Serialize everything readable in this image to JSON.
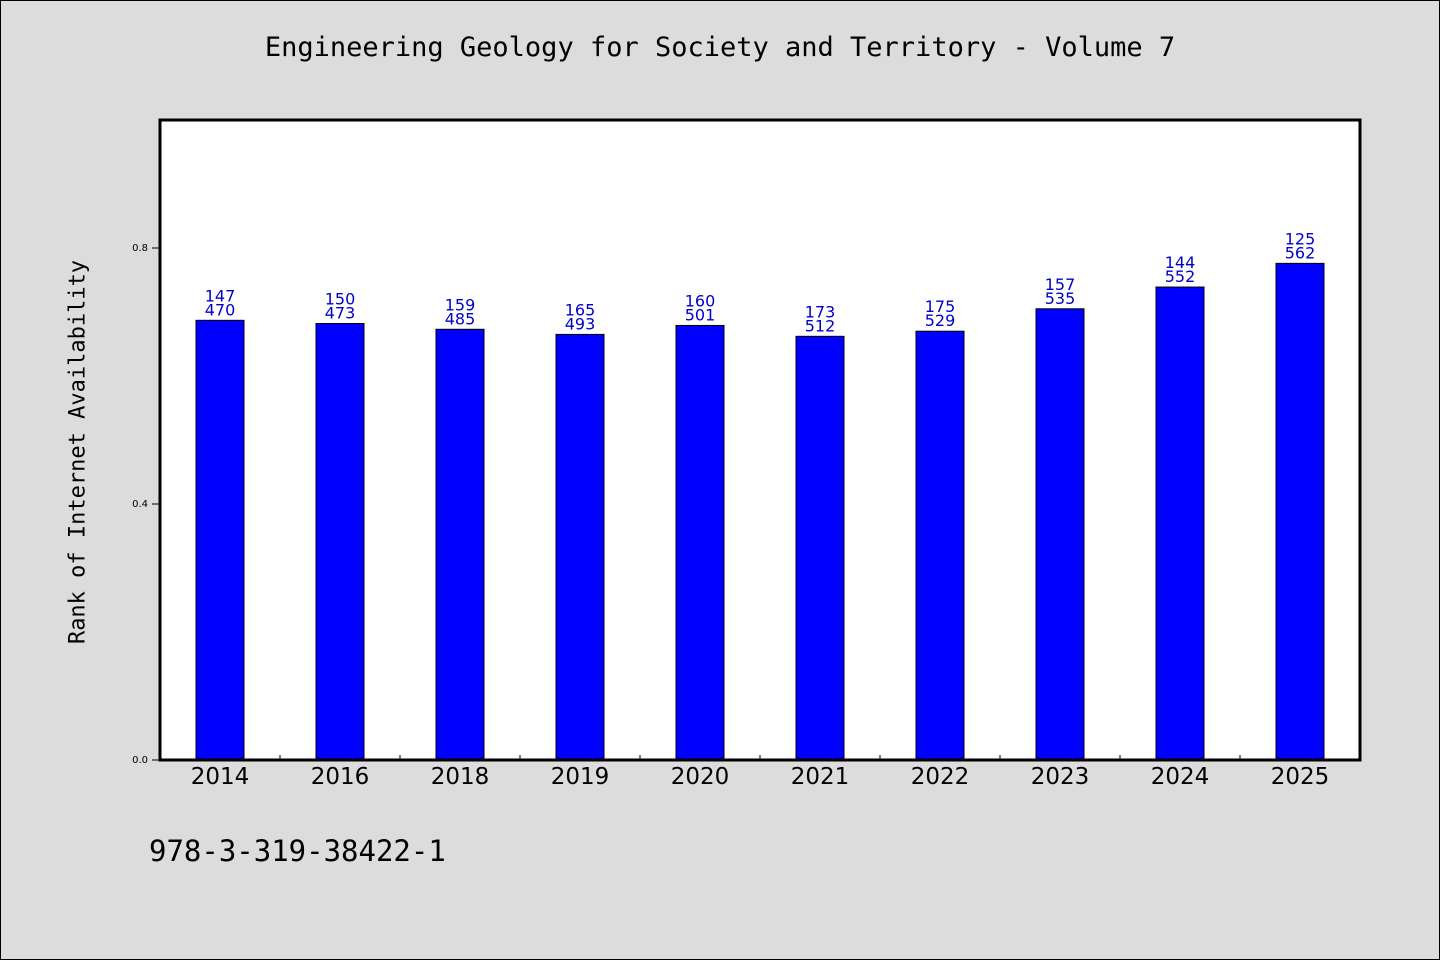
{
  "page": {
    "title": "Engineering Geology for Society and Territory - Volume 7",
    "ylabel": "Rank of Internet Availability",
    "footer_code": "978-3-319-38422-1"
  },
  "colors": {
    "background": "#dcdcdc",
    "plot_area": "#ffffff",
    "bar": "#0000ff",
    "data_label": "#0000cc"
  },
  "chart_data": {
    "type": "bar",
    "title": "Engineering Geology for Society and Territory - Volume 7",
    "xlabel": "",
    "ylabel": "Rank of Internet Availability",
    "categories": [
      "2014",
      "2016",
      "2018",
      "2019",
      "2020",
      "2021",
      "2022",
      "2023",
      "2024",
      "2025"
    ],
    "values": [
      0.687,
      0.682,
      0.673,
      0.665,
      0.679,
      0.662,
      0.67,
      0.705,
      0.739,
      0.776
    ],
    "labels_top": [
      "147",
      "150",
      "159",
      "165",
      "160",
      "173",
      "175",
      "157",
      "144",
      "125"
    ],
    "labels_bottom": [
      "470",
      "473",
      "485",
      "493",
      "501",
      "512",
      "529",
      "535",
      "552",
      "562"
    ],
    "ylim": [
      0,
      1.0
    ],
    "yticks": [
      0.0,
      0.4,
      0.8
    ],
    "ytick_labels": [
      "0.0",
      "0.4",
      "0.8"
    ],
    "grid": false,
    "legend": "none"
  }
}
